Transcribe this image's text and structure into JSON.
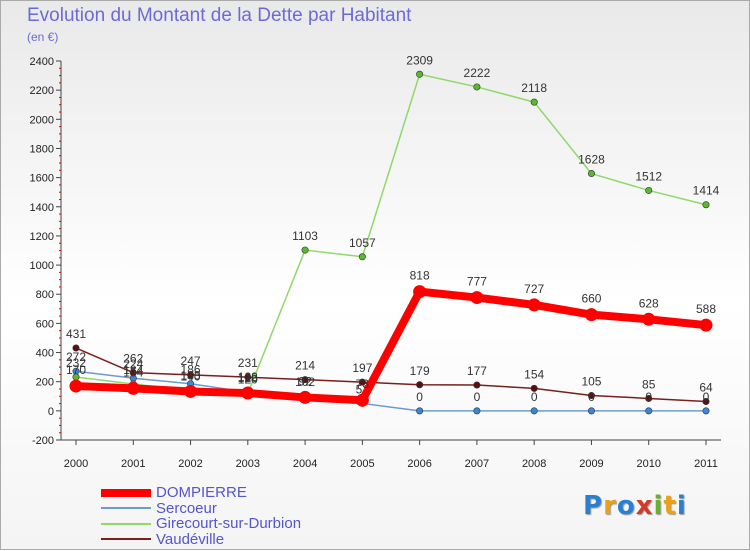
{
  "header": {
    "title": "Evolution du Montant de la Dette par Habitant",
    "subtitle": "(en €)"
  },
  "logo": {
    "text": "Proxiti",
    "colors": [
      "#2a7fcf",
      "#e8a21a",
      "#2a7fcf",
      "#d43a2a",
      "#6ab02a",
      "#e8a21a",
      "#2a7fcf"
    ]
  },
  "chart_data": {
    "type": "line",
    "x": [
      2000,
      2001,
      2002,
      2003,
      2004,
      2005,
      2006,
      2007,
      2008,
      2009,
      2010,
      2011
    ],
    "ylim": [
      -200,
      2400
    ],
    "yticks": [
      -200,
      0,
      200,
      400,
      600,
      800,
      1000,
      1200,
      1400,
      1600,
      1800,
      2000,
      2200,
      2400
    ],
    "grid": false,
    "legend_position": "bottom-left",
    "series": [
      {
        "name": "Vaudéville",
        "color": "#7a1e1e",
        "marker": "#5a1010",
        "width": 1.5,
        "values": [
          431,
          262,
          247,
          231,
          214,
          197,
          179,
          177,
          154,
          105,
          85,
          64
        ]
      },
      {
        "name": "Sercoeur",
        "color": "#6a9ccc",
        "marker": "#3b86d9",
        "width": 1.5,
        "values": [
          272,
          224,
          186,
          128,
          102,
          51,
          0,
          0,
          0,
          0,
          0,
          0
        ]
      },
      {
        "name": "Girecourt-sur-Durbion",
        "color": "#8fd86a",
        "marker": "#5ab82e",
        "width": 1.5,
        "values": [
          232,
          184,
          140,
          120,
          1103,
          1057,
          2309,
          2222,
          2118,
          1628,
          1512,
          1414
        ]
      },
      {
        "name": "DOMPIERRE",
        "color": "#ff0000",
        "marker": "#ff0000",
        "width": 8,
        "values": [
          170,
          154,
          133,
          122,
          92,
          73,
          818,
          777,
          727,
          660,
          628,
          588
        ]
      }
    ],
    "legend_order": [
      "DOMPIERRE",
      "Sercoeur",
      "Girecourt-sur-Durbion",
      "Vaudéville"
    ]
  }
}
